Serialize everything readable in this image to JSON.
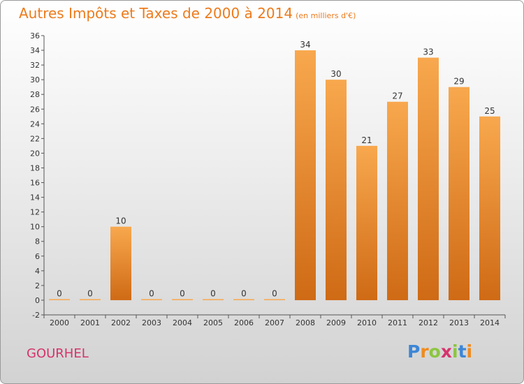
{
  "header": {
    "title": "Autres Impôts et Taxes de 2000 à 2014",
    "subtitle": "(en milliers d'€)"
  },
  "commune": "GOURHEL",
  "logo": {
    "letters": [
      "P",
      "r",
      "o",
      "x",
      "i",
      "t",
      "i"
    ],
    "colors": [
      "#3d86d6",
      "#f08a1d",
      "#8cc63f",
      "#d6336c",
      "#8cc63f",
      "#3d86d6",
      "#f08a1d"
    ]
  },
  "colors": {
    "title": "#ec7b1c",
    "bar_light": "#f8a84e",
    "bar_dark": "#cf6a15",
    "commune": "#d6336c"
  },
  "chart_data": {
    "type": "bar",
    "title": "Autres Impôts et Taxes de 2000 à 2014",
    "subtitle": "(en milliers d'€)",
    "categories": [
      "2000",
      "2001",
      "2002",
      "2003",
      "2004",
      "2005",
      "2006",
      "2007",
      "2008",
      "2009",
      "2010",
      "2011",
      "2012",
      "2013",
      "2014"
    ],
    "values": [
      0,
      0,
      10,
      0,
      0,
      0,
      0,
      0,
      34,
      30,
      21,
      27,
      33,
      29,
      25
    ],
    "ylim": [
      -2,
      36
    ],
    "yticks": [
      -2,
      0,
      2,
      4,
      6,
      8,
      10,
      12,
      14,
      16,
      18,
      20,
      22,
      24,
      26,
      28,
      30,
      32,
      34,
      36
    ],
    "grid": false,
    "legend": "none"
  }
}
